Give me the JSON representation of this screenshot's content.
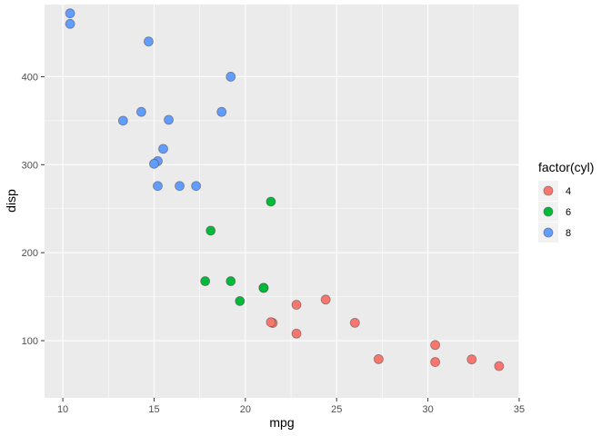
{
  "chart_data": {
    "type": "scatter",
    "xlabel": "mpg",
    "ylabel": "disp",
    "xlim": [
      9,
      35
    ],
    "ylim": [
      35,
      482
    ],
    "x_ticks": [
      10,
      15,
      20,
      25,
      30,
      35
    ],
    "y_ticks": [
      100,
      200,
      300,
      400
    ],
    "x_tick_labels": [
      "10",
      "15",
      "20",
      "25",
      "30",
      "35"
    ],
    "y_tick_labels": [
      "100",
      "200",
      "300",
      "400"
    ],
    "grid": true,
    "legend": {
      "title": "factor(cyl)",
      "position": "right",
      "entries": [
        "4",
        "6",
        "8"
      ]
    },
    "colors": {
      "4": "#F8766D",
      "6": "#00BA38",
      "8": "#619CFF",
      "panel_bg": "#EBEBEB",
      "grid": "#FFFFFF"
    },
    "series": [
      {
        "name": "4",
        "points": [
          [
            22.8,
            108
          ],
          [
            24.4,
            146.7
          ],
          [
            22.8,
            140.8
          ],
          [
            32.4,
            78.7
          ],
          [
            30.4,
            75.7
          ],
          [
            33.9,
            71.1
          ],
          [
            21.5,
            120.1
          ],
          [
            27.3,
            79
          ],
          [
            26.0,
            120.3
          ],
          [
            30.4,
            95.1
          ],
          [
            21.4,
            121
          ]
        ]
      },
      {
        "name": "6",
        "points": [
          [
            21.0,
            160
          ],
          [
            21.0,
            160
          ],
          [
            21.4,
            258
          ],
          [
            18.1,
            225
          ],
          [
            19.2,
            167.6
          ],
          [
            17.8,
            167.6
          ],
          [
            19.7,
            145
          ]
        ]
      },
      {
        "name": "8",
        "points": [
          [
            18.7,
            360
          ],
          [
            14.3,
            360
          ],
          [
            16.4,
            275.8
          ],
          [
            17.3,
            275.8
          ],
          [
            15.2,
            275.8
          ],
          [
            10.4,
            472
          ],
          [
            10.4,
            460
          ],
          [
            14.7,
            440
          ],
          [
            15.5,
            318
          ],
          [
            15.2,
            304
          ],
          [
            13.3,
            350
          ],
          [
            19.2,
            400
          ],
          [
            15.8,
            351
          ],
          [
            15.0,
            301
          ]
        ]
      }
    ]
  }
}
